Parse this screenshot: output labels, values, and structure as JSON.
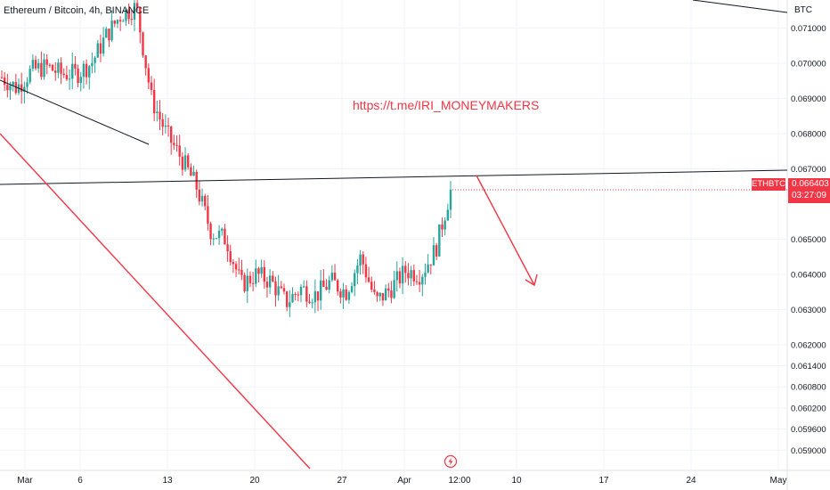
{
  "header": {
    "title": "Ethereum / Bitcoin, 4h, BINANCE"
  },
  "watermark": "https://t.me/IRI_MONEYMAKERS",
  "overlays": {
    "btc_label": "BTC",
    "symbol_tag": "ETHBTC",
    "last_price": "0.066403",
    "countdown": "03:27:09"
  },
  "colors": {
    "up": "#26a69a",
    "down": "#f23645",
    "trendline_dark": "#131722",
    "trendline_red": "#f23645",
    "grid": "#f0f3fa",
    "axis_text": "#131722"
  },
  "icons": {
    "replay": "lightning-bolt-icon"
  },
  "chart_data": {
    "type": "candlestick",
    "ylim": [
      0.0585,
      0.0718
    ],
    "x_ticks": [
      "Mar",
      "6",
      "13",
      "20",
      "27",
      "Apr",
      "12:00",
      "10",
      "17",
      "24",
      "May"
    ],
    "y_ticks": [
      0.071,
      0.07,
      0.069,
      0.068,
      0.067,
      0.065,
      0.064,
      0.063,
      0.062,
      0.0614,
      0.0608,
      0.0602,
      0.0596,
      0.059
    ],
    "y_tick_labels": [
      "0.071000",
      "0.070000",
      "0.069000",
      "0.068000",
      "0.067000",
      "0.065000",
      "0.064000",
      "0.063000",
      "0.062000",
      "0.061400",
      "0.060800",
      "0.060200",
      "0.059600",
      "0.059000"
    ],
    "last_price": 0.066403,
    "trend": [
      0.0696,
      0.0693,
      0.0698,
      0.0699,
      0.0697,
      0.0697,
      0.07,
      0.0708,
      0.0714,
      0.0716,
      0.069,
      0.068,
      0.0673,
      0.0665,
      0.0652,
      0.065,
      0.0637,
      0.064,
      0.0638,
      0.0632,
      0.0636,
      0.0634,
      0.0638,
      0.0635,
      0.0645,
      0.0632,
      0.0636,
      0.0641,
      0.064,
      0.0647,
      0.0664
    ]
  }
}
